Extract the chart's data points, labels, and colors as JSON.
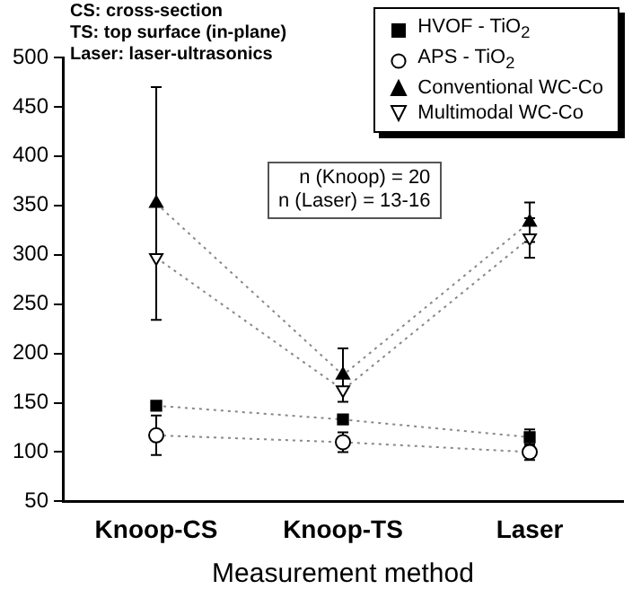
{
  "chart_data": {
    "type": "line",
    "xlabel": "Measurement method",
    "categories": [
      "Knoop-CS",
      "Knoop-TS",
      "Laser"
    ],
    "series": [
      {
        "name": "HVOF - TiO$_{2}$",
        "color": "#000000",
        "marker": "square",
        "values": [
          147,
          133,
          115
        ],
        "errors": [
          null,
          null,
          8
        ]
      },
      {
        "name": "APS - TiO$_{2}$",
        "color": "#000000",
        "marker": "circle",
        "values": [
          117,
          110,
          100
        ],
        "errors": [
          20,
          10,
          8
        ]
      },
      {
        "name": "Conventional WC-Co",
        "color": "#000000",
        "marker": "triangle",
        "values": [
          352,
          178,
          333
        ],
        "errors": [
          118,
          27,
          20
        ]
      },
      {
        "name": "Multimodal WC-Co",
        "color": "#000000",
        "marker": "triangle-down",
        "values": [
          297,
          163,
          317
        ],
        "errors": [
          null,
          null,
          20
        ]
      }
    ],
    "ylim": [
      50,
      500
    ],
    "yticks": [
      50,
      100,
      150,
      200,
      250,
      300,
      350,
      400,
      450,
      500
    ],
    "line_style": "dotted",
    "legend": "top right",
    "grid": false,
    "annotations": [
      "CS: cross-section",
      "TS: top surface (in-plane)",
      "Laser: laser-ultrasonics",
      "n (Knoop) = 20\nn (Laser) = 13-16"
    ]
  }
}
